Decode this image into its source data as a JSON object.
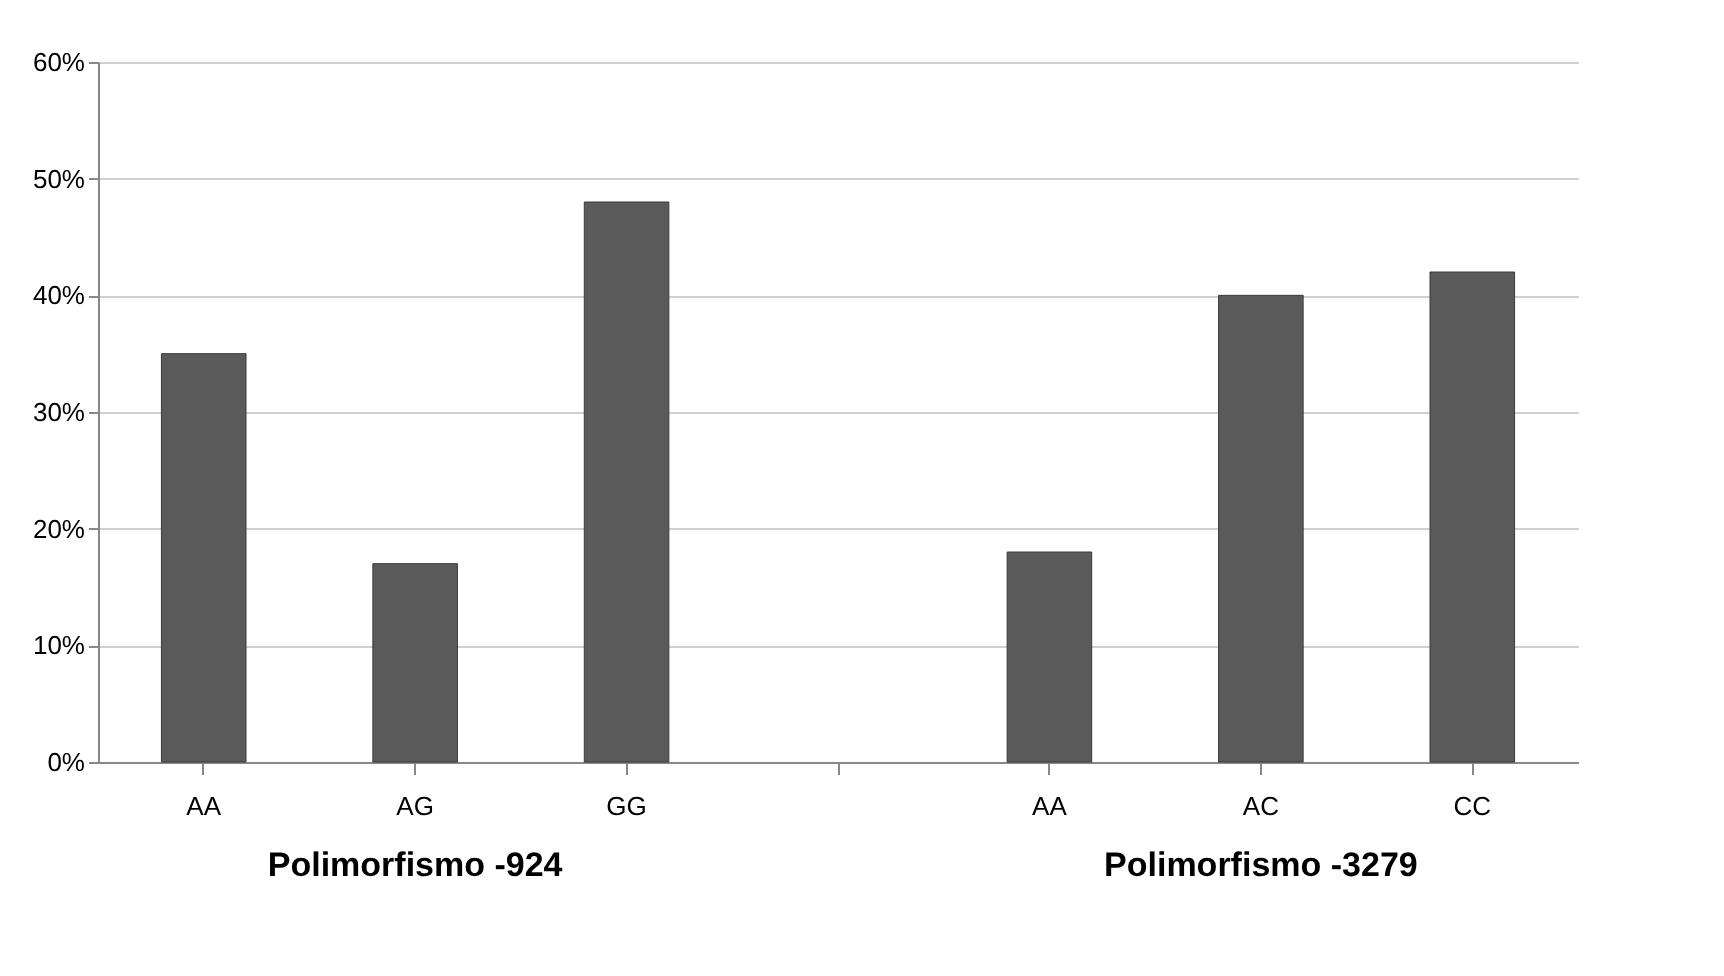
{
  "chart_data": {
    "type": "bar",
    "categories": [
      "AA",
      "AG",
      "GG",
      null,
      "AA",
      "AC",
      "CC"
    ],
    "values": [
      35,
      17,
      48,
      null,
      18,
      40,
      42
    ],
    "color": "#5a5a5a",
    "ylim": [
      0,
      60
    ],
    "yticks": [
      {
        "value": 0,
        "label": "0%"
      },
      {
        "value": 10,
        "label": "10%"
      },
      {
        "value": 20,
        "label": "20%"
      },
      {
        "value": 30,
        "label": "30%"
      },
      {
        "value": 40,
        "label": "40%"
      },
      {
        "value": 50,
        "label": "50%"
      },
      {
        "value": 60,
        "label": "60%"
      }
    ],
    "grid": "y",
    "annotations": [
      "Polimorfismo -924",
      "Polimorfismo -3279"
    ]
  }
}
